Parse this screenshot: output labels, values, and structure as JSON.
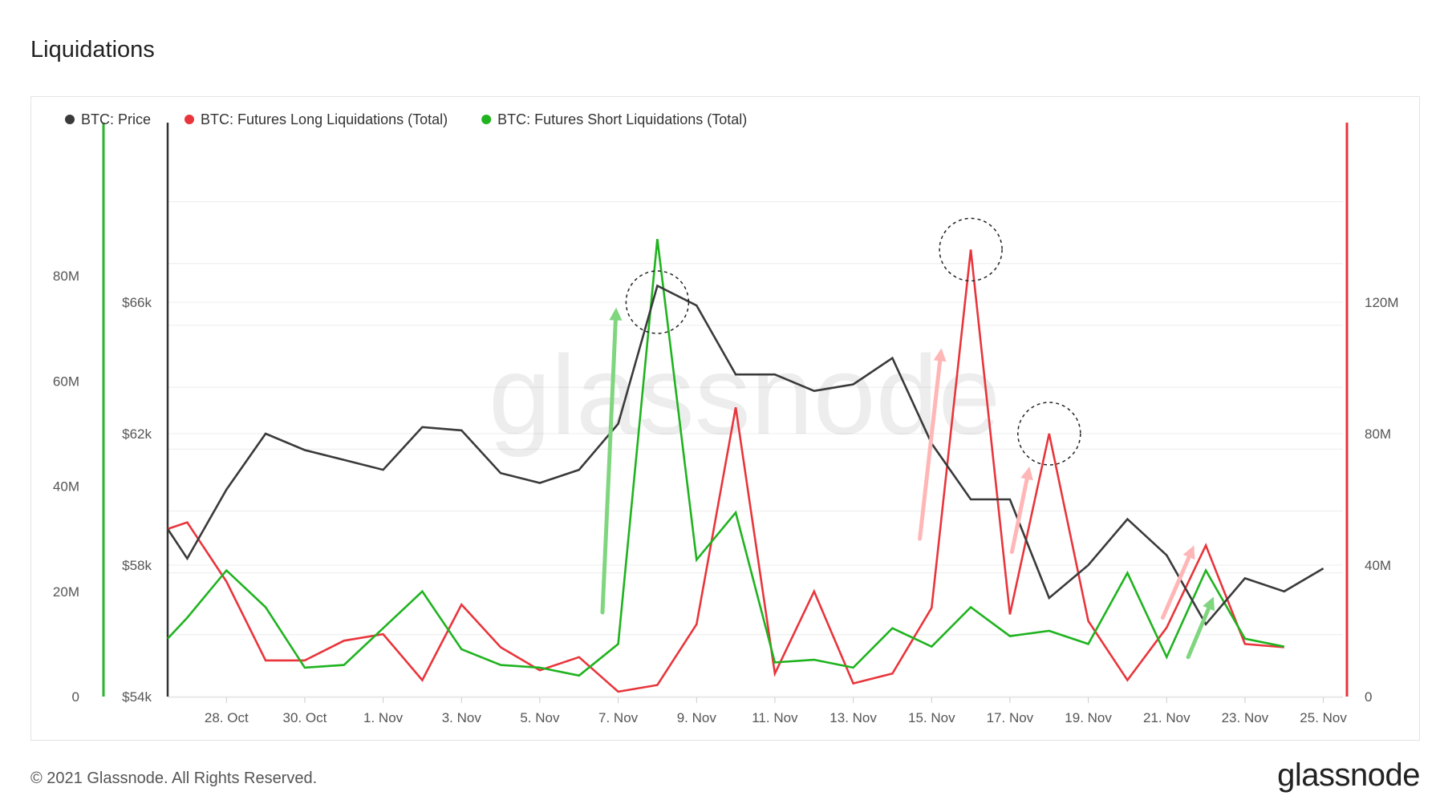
{
  "page_title": "Liquidations",
  "footer": {
    "copyright": "© 2021 Glassnode. All Rights Reserved.",
    "logo": "glassnode"
  },
  "watermark": "glassnode",
  "chart_data": {
    "type": "line",
    "x_ticks": [
      "28. Oct",
      "30. Oct",
      "1. Nov",
      "3. Nov",
      "5. Nov",
      "7. Nov",
      "9. Nov",
      "11. Nov",
      "13. Nov",
      "15. Nov",
      "17. Nov",
      "19. Nov",
      "21. Nov",
      "23. Nov",
      "25. Nov"
    ],
    "x_days": [
      2,
      4,
      6,
      8,
      10,
      12,
      14,
      16,
      18,
      20,
      22,
      24,
      26,
      28,
      30
    ],
    "x_range_days": [
      0.5,
      30.5
    ],
    "legend_position": "top-left",
    "axes": {
      "outer_left": {
        "ticks": [
          "0",
          "20M",
          "40M",
          "60M",
          "80M"
        ],
        "values": [
          0,
          20,
          40,
          60,
          80
        ],
        "unit": "M",
        "range": [
          0,
          100
        ]
      },
      "inner_left": {
        "ticks": [
          "$54k",
          "$58k",
          "$62k",
          "$66k"
        ],
        "values": [
          54,
          58,
          62,
          66
        ],
        "unit": "$k",
        "range": [
          54,
          70
        ],
        "color": "#2db52d"
      },
      "right": {
        "ticks": [
          "0",
          "40M",
          "80M",
          "120M"
        ],
        "values": [
          0,
          40,
          80,
          120
        ],
        "unit": "M",
        "range": [
          0,
          160
        ],
        "color": "#e8353b"
      }
    },
    "series": [
      {
        "name": "BTC: Price",
        "axis": "inner_left",
        "color": "#3a3a3a",
        "x": [
          0.5,
          1,
          2,
          3,
          4,
          5,
          6,
          7,
          8,
          9,
          10,
          11,
          12,
          13,
          14,
          15,
          16,
          17,
          18,
          19,
          20,
          21,
          22,
          23,
          24,
          25,
          26,
          27,
          28,
          29,
          30
        ],
        "values": [
          59.1,
          58.2,
          60.3,
          62.0,
          61.5,
          61.2,
          60.9,
          62.2,
          62.1,
          60.8,
          60.5,
          60.9,
          62.3,
          66.5,
          65.9,
          63.8,
          63.8,
          63.3,
          63.5,
          64.3,
          61.7,
          60.0,
          60.0,
          57.0,
          58.0,
          59.4,
          58.3,
          56.2,
          57.6,
          57.2,
          57.9
        ]
      },
      {
        "name": "BTC: Futures Long Liquidations (Total)",
        "axis": "right",
        "color": "#e8353b",
        "x": [
          0.5,
          1,
          2,
          3,
          4,
          5,
          6,
          7,
          8,
          9,
          10,
          11,
          12,
          13,
          14,
          15,
          16,
          17,
          18,
          19,
          20,
          21,
          22,
          23,
          24,
          25,
          26,
          27,
          28,
          29
        ],
        "values": [
          51,
          53,
          35,
          11,
          11,
          17,
          19,
          5,
          28,
          15,
          8,
          12,
          1.5,
          3.5,
          22,
          88,
          7,
          32,
          4,
          7,
          27,
          136,
          25,
          80,
          23,
          5,
          21,
          46,
          16,
          15
        ]
      },
      {
        "name": "BTC: Futures Short Liquidations (Total)",
        "axis": "outer_left",
        "color": "#1fb31f",
        "x": [
          0.5,
          1,
          2,
          3,
          4,
          5,
          6,
          7,
          8,
          9,
          10,
          11,
          12,
          13,
          14,
          15,
          16,
          17,
          18,
          19,
          20,
          21,
          22,
          23,
          24,
          25,
          26,
          27,
          28,
          29
        ],
        "values": [
          11,
          15,
          24,
          17,
          5.5,
          6,
          13,
          20,
          9,
          6,
          5.5,
          4,
          10,
          87,
          26,
          35,
          6.5,
          7,
          5.5,
          13,
          9.5,
          17,
          11.5,
          12.5,
          10,
          23.5,
          7.5,
          24,
          11,
          9.5
        ]
      }
    ],
    "annotations": {
      "circles": [
        {
          "x": 13.0,
          "y": 66.0,
          "axis": "inner_left"
        },
        {
          "x": 21.0,
          "y": 136,
          "axis": "right"
        },
        {
          "x": 23.0,
          "y": 80,
          "axis": "right"
        }
      ],
      "arrows": [
        {
          "color": "#7fd67f",
          "from": {
            "x": 11.6,
            "y": 16
          },
          "to": {
            "x": 11.95,
            "y": 74
          },
          "axis": "outer_left"
        },
        {
          "color": "#ffb6b6",
          "from": {
            "x": 19.7,
            "y": 48
          },
          "to": {
            "x": 20.25,
            "y": 106
          },
          "axis": "right"
        },
        {
          "color": "#ffb6b6",
          "from": {
            "x": 22.05,
            "y": 44
          },
          "to": {
            "x": 22.5,
            "y": 70
          },
          "axis": "right"
        },
        {
          "color": "#ffb6b6",
          "from": {
            "x": 25.9,
            "y": 24
          },
          "to": {
            "x": 26.7,
            "y": 46
          },
          "axis": "right"
        },
        {
          "color": "#7fd67f",
          "from": {
            "x": 26.55,
            "y": 7.5
          },
          "to": {
            "x": 27.2,
            "y": 19
          },
          "axis": "outer_left"
        }
      ]
    }
  }
}
